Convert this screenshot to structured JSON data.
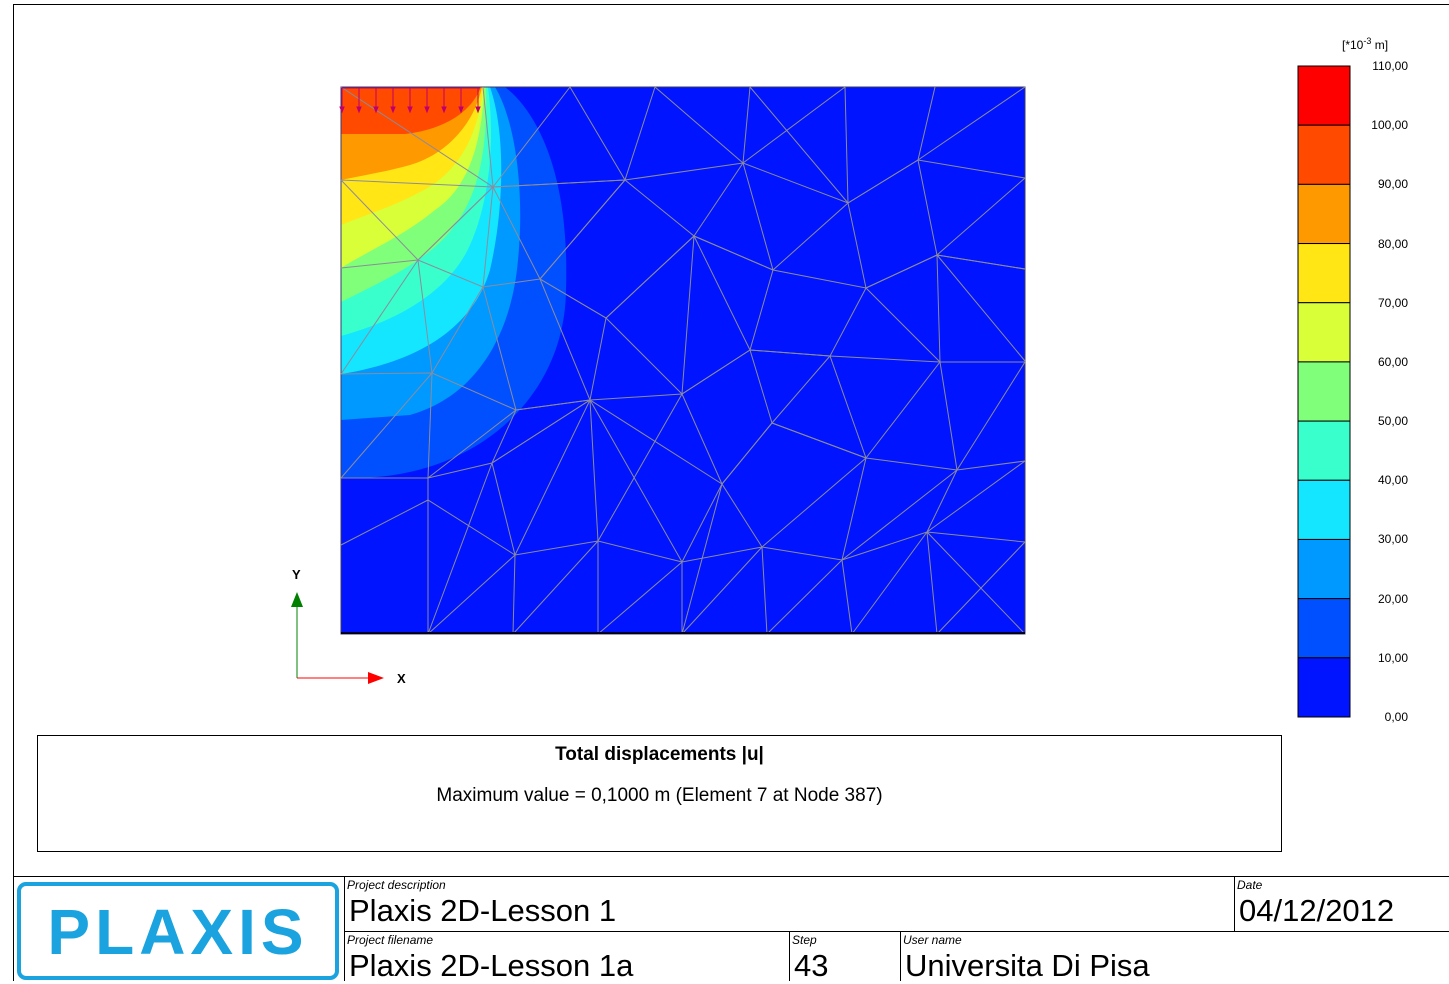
{
  "legend": {
    "unit_prefix": "[*10",
    "unit_exp": "-3",
    "unit_suffix": " m]",
    "ticks": [
      "110,00",
      "100,00",
      "90,00",
      "80,00",
      "70,00",
      "60,00",
      "50,00",
      "40,00",
      "30,00",
      "20,00",
      "10,00",
      "0,00"
    ],
    "colors": [
      "#ff0000",
      "#ff4a00",
      "#ff9900",
      "#ffe614",
      "#d9ff38",
      "#80ff7a",
      "#38ffcc",
      "#14e6ff",
      "#0099ff",
      "#0050ff",
      "#0014ff"
    ]
  },
  "axes": {
    "x_label": "X",
    "y_label": "Y",
    "x_color": "#ff0000",
    "y_color": "#008000"
  },
  "result": {
    "title": "Total displacements |u|",
    "max_text": "Maximum value = 0,1000 m (Element 7 at Node 387)"
  },
  "title_block": {
    "logo": "PLAXIS",
    "project_description_label": "Project description",
    "project_description": "Plaxis 2D-Lesson 1",
    "date_label": "Date",
    "date": "04/12/2012",
    "project_filename_label": "Project filename",
    "project_filename": "Plaxis 2D-Lesson 1a",
    "step_label": "Step",
    "step": "43",
    "user_name_label": "User name",
    "user_name": "Universita Di Pisa"
  },
  "colors": {
    "mesh_background": "#0014ff",
    "mesh_lines": "#8c8c9c",
    "load_arrows": "#c0006a",
    "logo": "#1aa3df"
  }
}
